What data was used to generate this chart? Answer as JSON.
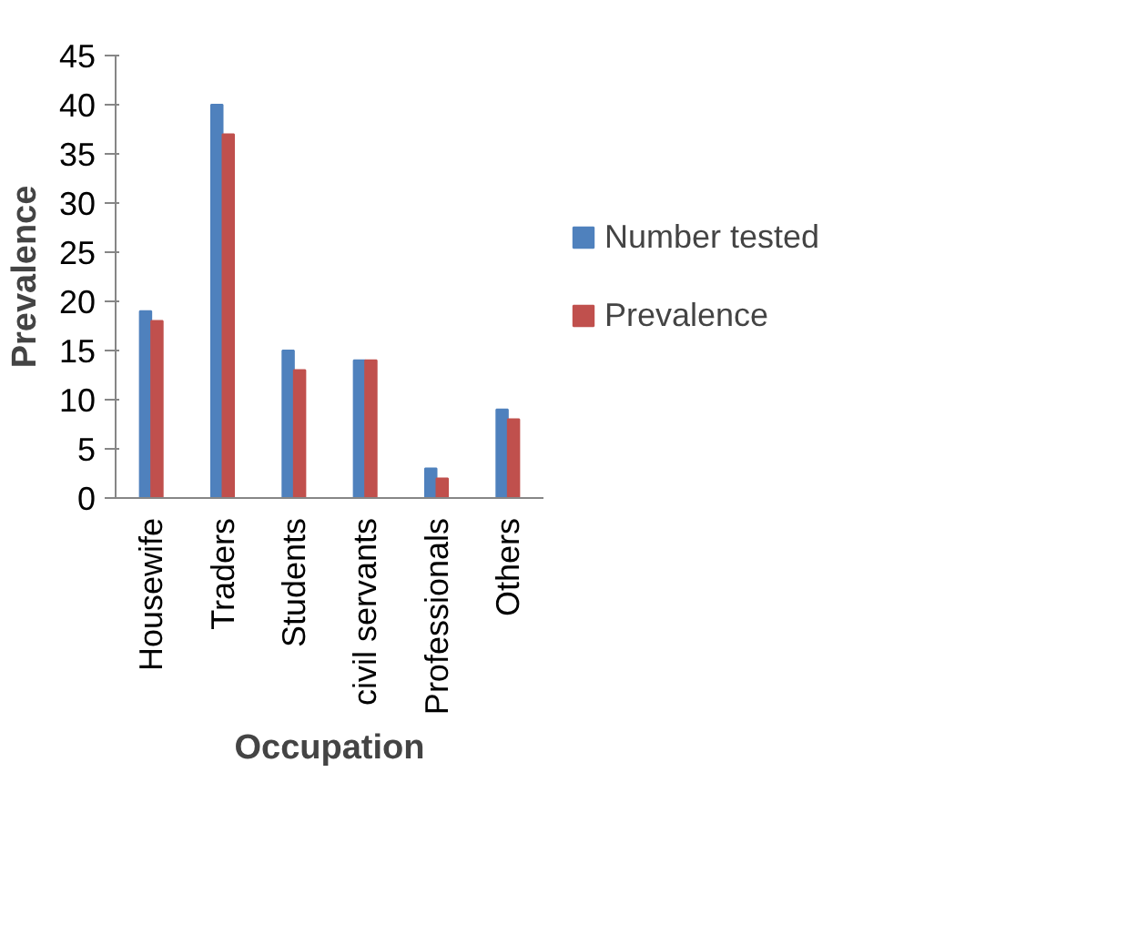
{
  "chart_data": {
    "type": "bar",
    "xlabel": "Occupation",
    "ylabel": "Prevalence",
    "categories": [
      "Housewife",
      "Traders",
      "Students",
      "civil servants",
      "Professionals",
      "Others"
    ],
    "series": [
      {
        "name": "Number tested",
        "color": "#4f81bd",
        "values": [
          19,
          40,
          15,
          14,
          3,
          9
        ]
      },
      {
        "name": "Prevalence",
        "color": "#c0504d",
        "values": [
          18,
          37,
          13,
          14,
          2,
          8
        ]
      }
    ],
    "ylim": [
      0,
      45
    ],
    "yticks": [
      0,
      5,
      10,
      15,
      20,
      25,
      30,
      35,
      40,
      45
    ],
    "legend": "right"
  }
}
